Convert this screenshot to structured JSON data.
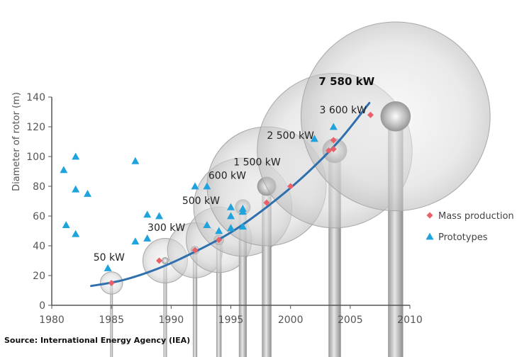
{
  "source_note": "Source: International Energy Agency (IEA)",
  "colors": {
    "mass_production": "#e8606a",
    "prototypes": "#1fa3dc",
    "trend_line": "#2e6fae",
    "turbine_gray": "#c9c9c9"
  },
  "chart_data": {
    "type": "scatter",
    "title": "",
    "xlabel": "",
    "ylabel": "Diameter of rotor (m)",
    "xlim": [
      1980,
      2010
    ],
    "ylim": [
      0,
      140
    ],
    "x_ticks": [
      "1980",
      "1985",
      "1990",
      "1995",
      "2000",
      "2005",
      "2010"
    ],
    "y_ticks": [
      "0",
      "20",
      "40",
      "60",
      "80",
      "100",
      "120",
      "140"
    ],
    "legend_position": "right",
    "series": [
      {
        "name": "Mass production",
        "marker": "diamond",
        "points": [
          {
            "x": 1985,
            "y": 15
          },
          {
            "x": 1989,
            "y": 30
          },
          {
            "x": 1992,
            "y": 37
          },
          {
            "x": 1994,
            "y": 44
          },
          {
            "x": 1998,
            "y": 69
          },
          {
            "x": 2000,
            "y": 80
          },
          {
            "x": 2003.2,
            "y": 104
          },
          {
            "x": 2003.6,
            "y": 105
          },
          {
            "x": 2003.6,
            "y": 111
          },
          {
            "x": 2006.7,
            "y": 128
          }
        ]
      },
      {
        "name": "Prototypes",
        "marker": "triangle",
        "points": [
          {
            "x": 1981,
            "y": 91
          },
          {
            "x": 1981.2,
            "y": 54
          },
          {
            "x": 1982,
            "y": 100
          },
          {
            "x": 1982,
            "y": 78
          },
          {
            "x": 1982,
            "y": 48
          },
          {
            "x": 1983,
            "y": 75
          },
          {
            "x": 1984.7,
            "y": 25
          },
          {
            "x": 1987,
            "y": 97
          },
          {
            "x": 1987,
            "y": 43
          },
          {
            "x": 1988,
            "y": 61
          },
          {
            "x": 1988,
            "y": 45
          },
          {
            "x": 1989,
            "y": 60
          },
          {
            "x": 1992,
            "y": 80
          },
          {
            "x": 1993,
            "y": 80
          },
          {
            "x": 1993,
            "y": 54
          },
          {
            "x": 1994,
            "y": 50
          },
          {
            "x": 1995,
            "y": 66
          },
          {
            "x": 1995,
            "y": 60
          },
          {
            "x": 1995,
            "y": 52
          },
          {
            "x": 1996,
            "y": 65
          },
          {
            "x": 1996,
            "y": 63
          },
          {
            "x": 1996,
            "y": 53
          },
          {
            "x": 2002,
            "y": 112
          },
          {
            "x": 2003.6,
            "y": 120
          }
        ]
      }
    ],
    "trend_line": [
      {
        "x": 1983.3,
        "y": 13
      },
      {
        "x": 1986,
        "y": 17
      },
      {
        "x": 1989,
        "y": 25
      },
      {
        "x": 1992,
        "y": 36
      },
      {
        "x": 1995,
        "y": 49
      },
      {
        "x": 1998,
        "y": 66
      },
      {
        "x": 2001,
        "y": 86
      },
      {
        "x": 2004,
        "y": 110
      },
      {
        "x": 2006.6,
        "y": 136
      }
    ],
    "turbines": [
      {
        "label": "50 kW",
        "year": 1985,
        "diameter": 15,
        "label_x": 1984.8,
        "label_y": 30
      },
      {
        "label": "300 kW",
        "year": 1989.5,
        "diameter": 30,
        "label_x": 1989.6,
        "label_y": 50
      },
      {
        "label": "500 kW",
        "year": 1992,
        "diameter": 37,
        "label_x": 1992.5,
        "label_y": 68
      },
      {
        "label": "600 kW",
        "year": 1994,
        "diameter": 44,
        "label_x": 1994.7,
        "label_y": 85
      },
      {
        "label": "1 500 kW",
        "year": 1996,
        "diameter": 66,
        "label_x": 1997.2,
        "label_y": 94
      },
      {
        "label": "2 500 kW",
        "year": 1998,
        "diameter": 80,
        "label_x": 2000.0,
        "label_y": 112
      },
      {
        "label": "3 600 kW",
        "year": 2003.7,
        "diameter": 104,
        "label_x": 2004.4,
        "label_y": 129
      },
      {
        "label": "7 580 kW",
        "year": 2008.8,
        "diameter": 127,
        "label_x": 2004.7,
        "label_y": 148
      }
    ]
  }
}
